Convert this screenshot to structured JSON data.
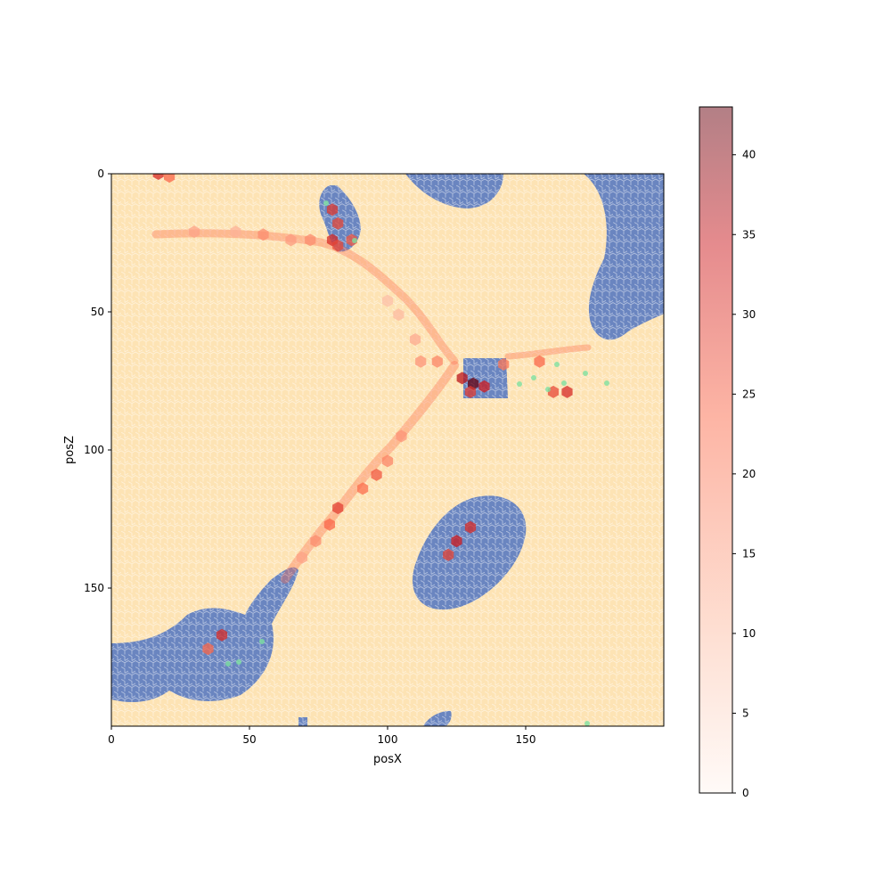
{
  "chart_data": {
    "type": "heatmap",
    "subtype": "hexbin overlaid on terrain map",
    "title": "",
    "xlabel": "posX",
    "ylabel": "posZ",
    "xlim": [
      0,
      200
    ],
    "ylim": [
      200,
      0
    ],
    "x_ticks": [
      0,
      50,
      100,
      150
    ],
    "y_ticks": [
      0,
      50,
      100,
      150
    ],
    "grid": false,
    "colorbar": {
      "min": 0,
      "max": 43,
      "ticks": [
        0,
        5,
        10,
        15,
        20,
        25,
        30,
        35,
        40
      ],
      "colormap": "Reds",
      "colors": [
        "#fff5f0",
        "#fcbba1",
        "#fb6a4a",
        "#cb181d",
        "#67000d"
      ],
      "alpha": 0.5,
      "placement": "right"
    },
    "background_colors": {
      "land": "#fde3b4",
      "water": "#6a85c0"
    },
    "hotspots": [
      {
        "x": 17,
        "z": 0,
        "count": 30
      },
      {
        "x": 21,
        "z": 1,
        "count": 22
      },
      {
        "x": 30,
        "z": 21,
        "count": 14
      },
      {
        "x": 45,
        "z": 21,
        "count": 12
      },
      {
        "x": 55,
        "z": 22,
        "count": 17
      },
      {
        "x": 65,
        "z": 24,
        "count": 15
      },
      {
        "x": 72,
        "z": 24,
        "count": 17
      },
      {
        "x": 80,
        "z": 13,
        "count": 28
      },
      {
        "x": 82,
        "z": 18,
        "count": 26
      },
      {
        "x": 80,
        "z": 24,
        "count": 30
      },
      {
        "x": 82,
        "z": 26,
        "count": 26
      },
      {
        "x": 87,
        "z": 24,
        "count": 24
      },
      {
        "x": 100,
        "z": 46,
        "count": 10
      },
      {
        "x": 104,
        "z": 51,
        "count": 11
      },
      {
        "x": 110,
        "z": 60,
        "count": 13
      },
      {
        "x": 112,
        "z": 68,
        "count": 16
      },
      {
        "x": 118,
        "z": 68,
        "count": 18
      },
      {
        "x": 131,
        "z": 76,
        "count": 43
      },
      {
        "x": 127,
        "z": 74,
        "count": 34
      },
      {
        "x": 135,
        "z": 77,
        "count": 32
      },
      {
        "x": 130,
        "z": 79,
        "count": 28
      },
      {
        "x": 142,
        "z": 69,
        "count": 20
      },
      {
        "x": 155,
        "z": 68,
        "count": 22
      },
      {
        "x": 165,
        "z": 79,
        "count": 30
      },
      {
        "x": 160,
        "z": 79,
        "count": 26
      },
      {
        "x": 105,
        "z": 95,
        "count": 16
      },
      {
        "x": 100,
        "z": 104,
        "count": 18
      },
      {
        "x": 96,
        "z": 109,
        "count": 24
      },
      {
        "x": 91,
        "z": 114,
        "count": 21
      },
      {
        "x": 82,
        "z": 121,
        "count": 27
      },
      {
        "x": 79,
        "z": 127,
        "count": 22
      },
      {
        "x": 74,
        "z": 133,
        "count": 17
      },
      {
        "x": 69,
        "z": 139,
        "count": 14
      },
      {
        "x": 125,
        "z": 133,
        "count": 32
      },
      {
        "x": 130,
        "z": 128,
        "count": 30
      },
      {
        "x": 122,
        "z": 138,
        "count": 27
      },
      {
        "x": 40,
        "z": 167,
        "count": 30
      },
      {
        "x": 35,
        "z": 172,
        "count": 22
      }
    ]
  }
}
